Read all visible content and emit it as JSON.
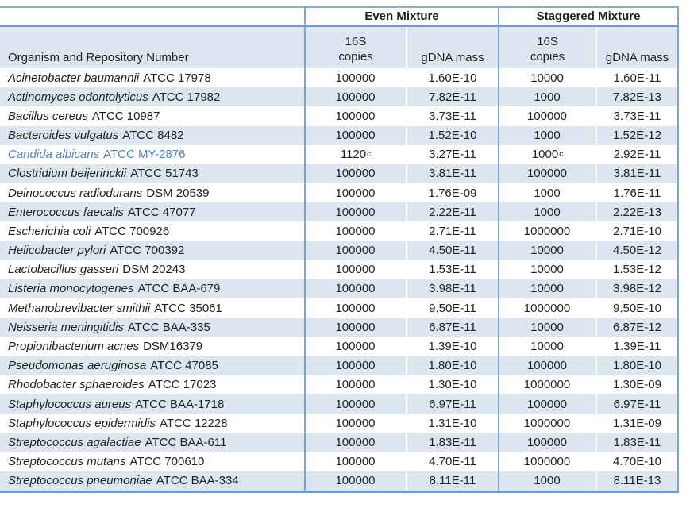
{
  "table": {
    "group_headers": {
      "even": "Even Mixture",
      "staggered": "Staggered Mixture"
    },
    "col_headers": {
      "organism": "Organism and Repository Number",
      "copies_line1": "16S",
      "copies_line2": "copies",
      "mass": "gDNA mass"
    },
    "colors": {
      "band_blue": "#dce6f1",
      "rule_blue": "#7ca3d3",
      "highlight_text_blue": "#4f81bd"
    },
    "rows": [
      {
        "organism_name": "Acinetobacter baumannii",
        "organism_id": "ATCC 17978",
        "highlight": false,
        "even_copies": "100000",
        "even_copies_sup": "",
        "even_mass": "1.60E-10",
        "stag_copies": "10000",
        "stag_copies_sup": "",
        "stag_mass": "1.60E-11"
      },
      {
        "organism_name": "Actinomyces odontolyticus",
        "organism_id": "ATCC 17982",
        "highlight": false,
        "even_copies": "100000",
        "even_copies_sup": "",
        "even_mass": "7.82E-11",
        "stag_copies": "1000",
        "stag_copies_sup": "",
        "stag_mass": "7.82E-13"
      },
      {
        "organism_name": "Bacillus cereus",
        "organism_id": "ATCC 10987",
        "highlight": false,
        "even_copies": "100000",
        "even_copies_sup": "",
        "even_mass": "3.73E-11",
        "stag_copies": "100000",
        "stag_copies_sup": "",
        "stag_mass": "3.73E-11"
      },
      {
        "organism_name": "Bacteroides vulgatus",
        "organism_id": "ATCC 8482",
        "highlight": false,
        "even_copies": "100000",
        "even_copies_sup": "",
        "even_mass": "1.52E-10",
        "stag_copies": "1000",
        "stag_copies_sup": "",
        "stag_mass": "1.52E-12"
      },
      {
        "organism_name": "Candida albicans",
        "organism_id": "ATCC MY-2876",
        "highlight": true,
        "even_copies": "1120",
        "even_copies_sup": "c",
        "even_mass": "3.27E-11",
        "stag_copies": "1000",
        "stag_copies_sup": "c",
        "stag_mass": "2.92E-11"
      },
      {
        "organism_name": "Clostridium beijerinckii",
        "organism_id": "ATCC 51743",
        "highlight": false,
        "even_copies": "100000",
        "even_copies_sup": "",
        "even_mass": "3.81E-11",
        "stag_copies": "100000",
        "stag_copies_sup": "",
        "stag_mass": "3.81E-11"
      },
      {
        "organism_name": "Deinococcus radiodurans",
        "organism_id": "DSM 20539",
        "highlight": false,
        "even_copies": "100000",
        "even_copies_sup": "",
        "even_mass": "1.76E-09",
        "stag_copies": "1000",
        "stag_copies_sup": "",
        "stag_mass": "1.76E-11"
      },
      {
        "organism_name": "Enterococcus faecalis",
        "organism_id": "ATCC 47077",
        "highlight": false,
        "even_copies": "100000",
        "even_copies_sup": "",
        "even_mass": "2.22E-11",
        "stag_copies": "1000",
        "stag_copies_sup": "",
        "stag_mass": "2.22E-13"
      },
      {
        "organism_name": "Escherichia coli",
        "organism_id": "ATCC 700926",
        "highlight": false,
        "even_copies": "100000",
        "even_copies_sup": "",
        "even_mass": "2.71E-11",
        "stag_copies": "1000000",
        "stag_copies_sup": "",
        "stag_mass": "2.71E-10"
      },
      {
        "organism_name": "Helicobacter pylori",
        "organism_id": "ATCC 700392",
        "highlight": false,
        "even_copies": "100000",
        "even_copies_sup": "",
        "even_mass": "4.50E-11",
        "stag_copies": "10000",
        "stag_copies_sup": "",
        "stag_mass": "4.50E-12"
      },
      {
        "organism_name": "Lactobacillus gasseri",
        "organism_id": "DSM 20243",
        "highlight": false,
        "even_copies": "100000",
        "even_copies_sup": "",
        "even_mass": "1.53E-11",
        "stag_copies": "10000",
        "stag_copies_sup": "",
        "stag_mass": "1.53E-12"
      },
      {
        "organism_name": "Listeria monocytogenes",
        "organism_id": "ATCC BAA-679",
        "highlight": false,
        "even_copies": "100000",
        "even_copies_sup": "",
        "even_mass": "3.98E-11",
        "stag_copies": "10000",
        "stag_copies_sup": "",
        "stag_mass": "3.98E-12"
      },
      {
        "organism_name": "Methanobrevibacter smithii",
        "organism_id": "ATCC 35061",
        "highlight": false,
        "even_copies": "100000",
        "even_copies_sup": "",
        "even_mass": "9.50E-11",
        "stag_copies": "1000000",
        "stag_copies_sup": "",
        "stag_mass": "9.50E-10"
      },
      {
        "organism_name": "Neisseria meningitidis",
        "organism_id": "ATCC BAA-335",
        "highlight": false,
        "even_copies": "100000",
        "even_copies_sup": "",
        "even_mass": "6.87E-11",
        "stag_copies": "10000",
        "stag_copies_sup": "",
        "stag_mass": "6.87E-12"
      },
      {
        "organism_name": "Propionibacterium acnes",
        "organism_id": "DSM16379",
        "highlight": false,
        "even_copies": "100000",
        "even_copies_sup": "",
        "even_mass": "1.39E-10",
        "stag_copies": "10000",
        "stag_copies_sup": "",
        "stag_mass": "1.39E-11"
      },
      {
        "organism_name": "Pseudomonas aeruginosa",
        "organism_id": "ATCC 47085",
        "highlight": false,
        "even_copies": "100000",
        "even_copies_sup": "",
        "even_mass": "1.80E-10",
        "stag_copies": "100000",
        "stag_copies_sup": "",
        "stag_mass": "1.80E-10"
      },
      {
        "organism_name": "Rhodobacter sphaeroides",
        "organism_id": "ATCC 17023",
        "highlight": false,
        "even_copies": "100000",
        "even_copies_sup": "",
        "even_mass": "1.30E-10",
        "stag_copies": "1000000",
        "stag_copies_sup": "",
        "stag_mass": "1.30E-09"
      },
      {
        "organism_name": "Staphylococcus aureus",
        "organism_id": "ATCC BAA-1718",
        "highlight": false,
        "even_copies": "100000",
        "even_copies_sup": "",
        "even_mass": "6.97E-11",
        "stag_copies": "100000",
        "stag_copies_sup": "",
        "stag_mass": "6.97E-11"
      },
      {
        "organism_name": "Staphylococcus epidermidis",
        "organism_id": "ATCC 12228",
        "highlight": false,
        "even_copies": "100000",
        "even_copies_sup": "",
        "even_mass": "1.31E-10",
        "stag_copies": "1000000",
        "stag_copies_sup": "",
        "stag_mass": "1.31E-09"
      },
      {
        "organism_name": "Streptococcus agalactiae",
        "organism_id": "ATCC BAA-611",
        "highlight": false,
        "even_copies": "100000",
        "even_copies_sup": "",
        "even_mass": "1.83E-11",
        "stag_copies": "100000",
        "stag_copies_sup": "",
        "stag_mass": "1.83E-11"
      },
      {
        "organism_name": "Streptococcus mutans",
        "organism_id": "ATCC 700610",
        "highlight": false,
        "even_copies": "100000",
        "even_copies_sup": "",
        "even_mass": "4.70E-11",
        "stag_copies": "1000000",
        "stag_copies_sup": "",
        "stag_mass": "4.70E-10"
      },
      {
        "organism_name": "Streptococcus pneumoniae",
        "organism_id": "ATCC BAA-334",
        "highlight": false,
        "even_copies": "100000",
        "even_copies_sup": "",
        "even_mass": "8.11E-11",
        "stag_copies": "1000",
        "stag_copies_sup": "",
        "stag_mass": "8.11E-13"
      }
    ]
  }
}
